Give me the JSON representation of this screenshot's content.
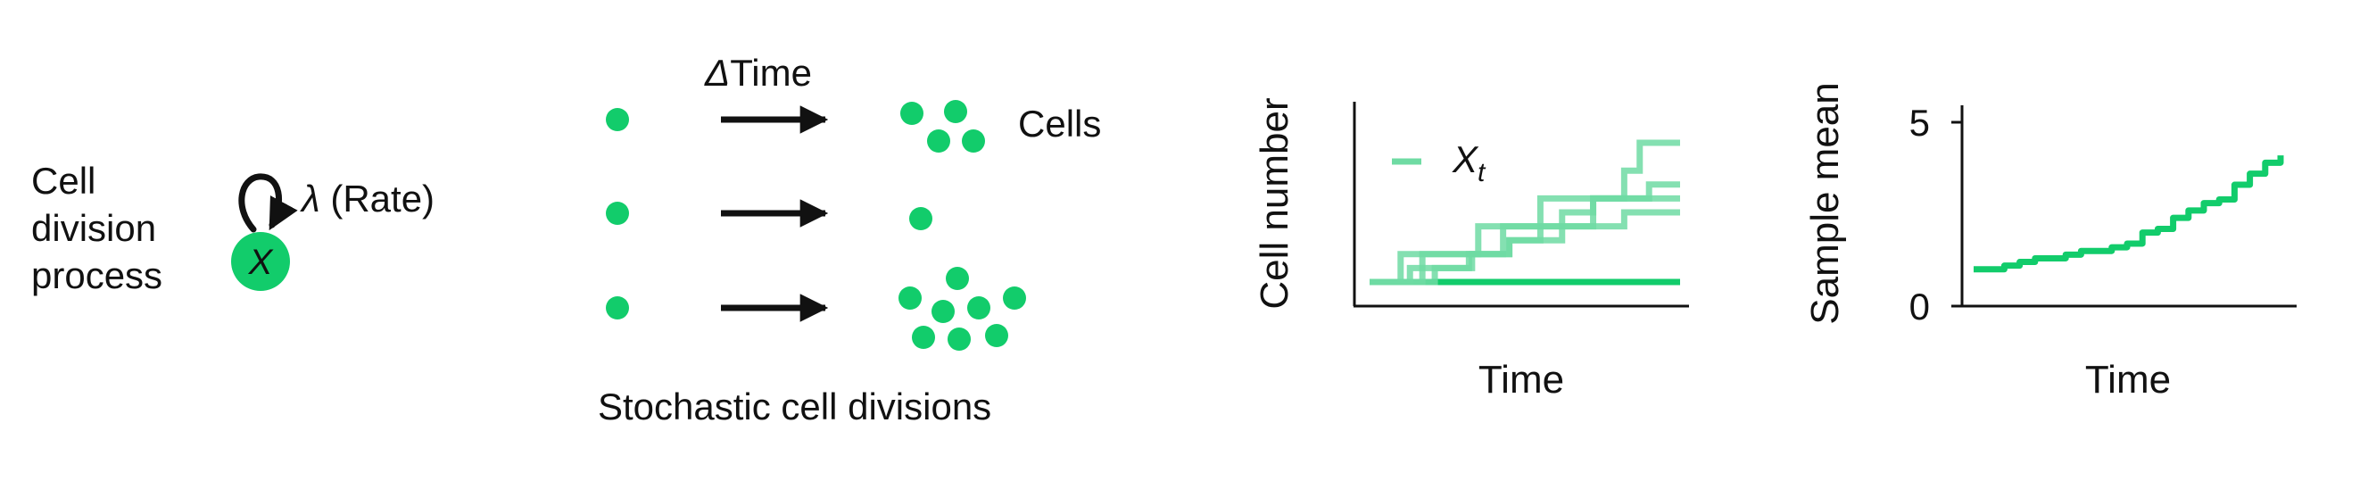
{
  "colors": {
    "green": "#12CC6B",
    "green_light": "#6FDBA3",
    "ink": "#111111"
  },
  "process": {
    "label_lines": [
      "Cell",
      "division",
      "process"
    ],
    "node_label": "X",
    "rate_symbol": "λ",
    "rate_text": "(Rate)",
    "icon": "self-loop-arrow-icon"
  },
  "divisions": {
    "time_symbol": "Δ",
    "time_text": "Time",
    "cells_label": "Cells",
    "caption": "Stochastic cell divisions",
    "rows": [
      {
        "start_cells": 1,
        "end_cells": 4
      },
      {
        "start_cells": 1,
        "end_cells": 1
      },
      {
        "start_cells": 1,
        "end_cells": 8
      }
    ]
  },
  "chart_data": [
    {
      "type": "line",
      "ylabel": "Cell number",
      "xlabel": "Time",
      "legend": {
        "symbol": "X",
        "subscript": "t",
        "placement": "top-left"
      },
      "x_ticks": false,
      "y_ticks": false,
      "series": [
        {
          "x": [
            0,
            1
          ],
          "y": [
            1,
            1
          ]
        },
        {
          "x": [
            0,
            0.17,
            0.43,
            0.55,
            0.82,
            0.87,
            1
          ],
          "y": [
            1,
            2,
            3,
            4,
            5,
            6,
            6
          ]
        },
        {
          "x": [
            0,
            0.1,
            0.35,
            0.5,
            0.72,
            1
          ],
          "y": [
            1,
            2,
            3,
            3,
            4,
            4
          ]
        },
        {
          "x": [
            0,
            0.13,
            0.32,
            0.45,
            0.55,
            0.62,
            0.72,
            0.9,
            1
          ],
          "y": [
            1,
            1.5,
            2,
            2.5,
            3,
            3.5,
            4,
            4.5,
            4.5
          ]
        },
        {
          "x": [
            0,
            0.21,
            0.33,
            0.45,
            0.62,
            0.82,
            1
          ],
          "y": [
            1,
            1.5,
            2,
            2.5,
            3,
            3.5,
            3.5
          ]
        }
      ]
    },
    {
      "type": "line",
      "ylabel": "Sample mean",
      "xlabel": "Time",
      "ylim": [
        0,
        5
      ],
      "y_ticks": [
        0,
        5
      ],
      "series": [
        {
          "x": [
            0,
            0.05,
            0.1,
            0.15,
            0.2,
            0.25,
            0.3,
            0.35,
            0.4,
            0.45,
            0.5,
            0.55,
            0.6,
            0.65,
            0.7,
            0.75,
            0.8,
            0.85,
            0.9,
            0.95,
            1
          ],
          "y": [
            1.0,
            1.0,
            1.1,
            1.2,
            1.3,
            1.3,
            1.4,
            1.5,
            1.5,
            1.6,
            1.7,
            2.0,
            2.1,
            2.4,
            2.6,
            2.8,
            2.9,
            3.3,
            3.6,
            3.9,
            4.1
          ]
        }
      ]
    }
  ]
}
